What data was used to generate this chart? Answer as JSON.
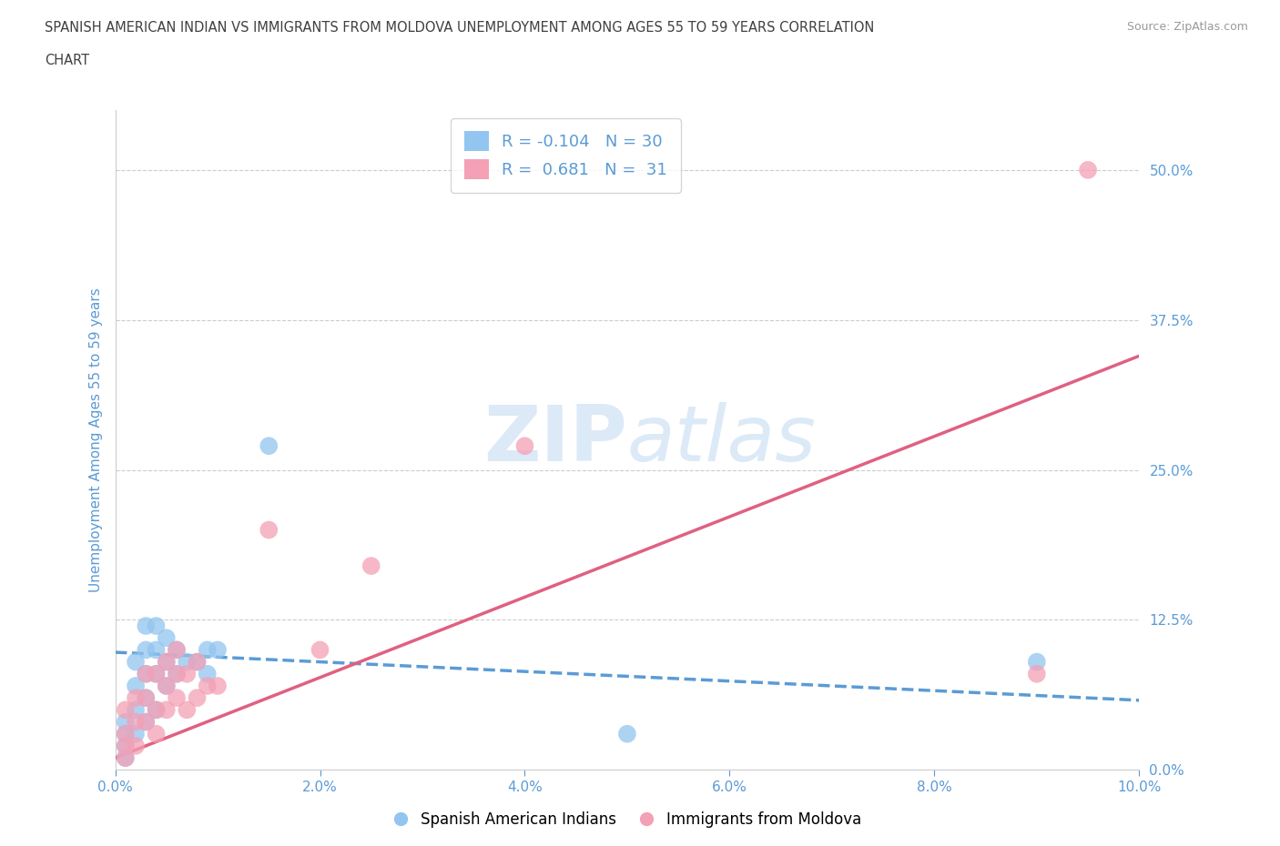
{
  "title_line1": "SPANISH AMERICAN INDIAN VS IMMIGRANTS FROM MOLDOVA UNEMPLOYMENT AMONG AGES 55 TO 59 YEARS CORRELATION",
  "title_line2": "CHART",
  "source_text": "Source: ZipAtlas.com",
  "ylabel": "Unemployment Among Ages 55 to 59 years",
  "xlim": [
    0.0,
    0.1
  ],
  "ylim": [
    0.0,
    0.55
  ],
  "yticks": [
    0.0,
    0.125,
    0.25,
    0.375,
    0.5
  ],
  "ytick_labels": [
    "0.0%",
    "12.5%",
    "25.0%",
    "37.5%",
    "50.0%"
  ],
  "xticks": [
    0.0,
    0.02,
    0.04,
    0.06,
    0.08,
    0.1
  ],
  "xtick_labels": [
    "0.0%",
    "2.0%",
    "4.0%",
    "6.0%",
    "8.0%",
    "10.0%"
  ],
  "r_blue": -0.104,
  "n_blue": 30,
  "r_pink": 0.681,
  "n_pink": 31,
  "blue_color": "#92C5F0",
  "pink_color": "#F4A0B5",
  "blue_line_color": "#5B9BD5",
  "pink_line_color": "#E06080",
  "axis_color": "#cccccc",
  "grid_color": "#cccccc",
  "tick_label_color": "#5B9BD5",
  "title_color": "#404040",
  "watermark_color": "#dce9f7",
  "blue_x": [
    0.001,
    0.001,
    0.001,
    0.001,
    0.002,
    0.002,
    0.002,
    0.002,
    0.003,
    0.003,
    0.003,
    0.003,
    0.003,
    0.004,
    0.004,
    0.004,
    0.004,
    0.005,
    0.005,
    0.005,
    0.006,
    0.006,
    0.007,
    0.008,
    0.009,
    0.009,
    0.01,
    0.015,
    0.05,
    0.09
  ],
  "blue_y": [
    0.01,
    0.02,
    0.03,
    0.04,
    0.05,
    0.03,
    0.07,
    0.09,
    0.04,
    0.06,
    0.08,
    0.1,
    0.12,
    0.05,
    0.08,
    0.1,
    0.12,
    0.07,
    0.09,
    0.11,
    0.08,
    0.1,
    0.09,
    0.09,
    0.08,
    0.1,
    0.1,
    0.27,
    0.03,
    0.09
  ],
  "pink_x": [
    0.001,
    0.001,
    0.001,
    0.001,
    0.002,
    0.002,
    0.002,
    0.003,
    0.003,
    0.003,
    0.004,
    0.004,
    0.004,
    0.005,
    0.005,
    0.005,
    0.006,
    0.006,
    0.006,
    0.007,
    0.007,
    0.008,
    0.008,
    0.009,
    0.01,
    0.015,
    0.02,
    0.025,
    0.04,
    0.09,
    0.095
  ],
  "pink_y": [
    0.01,
    0.02,
    0.03,
    0.05,
    0.02,
    0.04,
    0.06,
    0.04,
    0.06,
    0.08,
    0.03,
    0.05,
    0.08,
    0.05,
    0.07,
    0.09,
    0.06,
    0.08,
    0.1,
    0.05,
    0.08,
    0.06,
    0.09,
    0.07,
    0.07,
    0.2,
    0.1,
    0.17,
    0.27,
    0.08,
    0.5
  ],
  "blue_trend_x": [
    0.0,
    0.1
  ],
  "blue_trend_y": [
    0.098,
    0.058
  ],
  "pink_trend_x": [
    0.0,
    0.1
  ],
  "pink_trend_y": [
    0.01,
    0.345
  ]
}
